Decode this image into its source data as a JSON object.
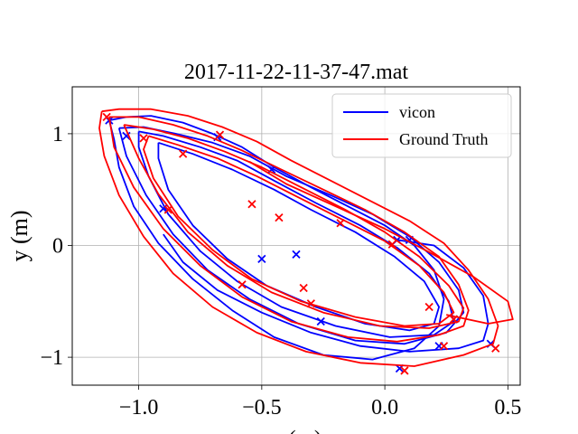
{
  "chart_data": {
    "type": "line",
    "title": "2017-11-22-11-37-47.mat",
    "xlabel": "x (m)",
    "ylabel": "y (m)",
    "xlim": [
      -1.27,
      0.55
    ],
    "ylim": [
      -1.25,
      1.42
    ],
    "xticks": [
      -1.0,
      -0.5,
      0.0,
      0.5
    ],
    "xtick_labels": [
      "−1.0",
      "−0.5",
      "0.0",
      "0.5"
    ],
    "yticks": [
      -1,
      0,
      1
    ],
    "ytick_labels": [
      "−1",
      "0",
      "1"
    ],
    "grid": true,
    "legend_position": "top-right",
    "series": [
      {
        "name": "vicon",
        "color": "#0000ff",
        "loops": [
          [
            [
              -1.12,
              1.12
            ],
            [
              -1.05,
              1.15
            ],
            [
              -0.95,
              1.16
            ],
            [
              -0.82,
              1.1
            ],
            [
              -0.7,
              1.0
            ],
            [
              -0.58,
              0.88
            ],
            [
              -0.45,
              0.7
            ],
            [
              -0.3,
              0.52
            ],
            [
              -0.15,
              0.35
            ],
            [
              0.0,
              0.18
            ],
            [
              0.12,
              0.0
            ],
            [
              0.2,
              -0.22
            ],
            [
              0.24,
              -0.48
            ],
            [
              0.22,
              -0.72
            ],
            [
              0.12,
              -0.92
            ],
            [
              -0.05,
              -1.02
            ],
            [
              -0.25,
              -0.98
            ],
            [
              -0.45,
              -0.82
            ],
            [
              -0.62,
              -0.58
            ],
            [
              -0.78,
              -0.3
            ],
            [
              -0.92,
              0.02
            ],
            [
              -1.02,
              0.35
            ],
            [
              -1.08,
              0.7
            ],
            [
              -1.1,
              0.95
            ],
            [
              -1.12,
              1.12
            ]
          ],
          [
            [
              -1.08,
              1.05
            ],
            [
              -0.98,
              1.06
            ],
            [
              -0.85,
              1.0
            ],
            [
              -0.7,
              0.92
            ],
            [
              -0.55,
              0.8
            ],
            [
              -0.4,
              0.62
            ],
            [
              -0.22,
              0.45
            ],
            [
              -0.05,
              0.28
            ],
            [
              0.1,
              0.08
            ],
            [
              0.22,
              -0.15
            ],
            [
              0.3,
              -0.4
            ],
            [
              0.32,
              -0.6
            ],
            [
              0.25,
              -0.78
            ],
            [
              0.08,
              -0.88
            ],
            [
              -0.12,
              -0.85
            ],
            [
              -0.35,
              -0.7
            ],
            [
              -0.55,
              -0.48
            ],
            [
              -0.72,
              -0.22
            ],
            [
              -0.86,
              0.1
            ],
            [
              -0.97,
              0.45
            ],
            [
              -1.05,
              0.8
            ],
            [
              -1.08,
              1.05
            ]
          ],
          [
            [
              -1.0,
              1.02
            ],
            [
              -0.9,
              0.98
            ],
            [
              -0.75,
              0.88
            ],
            [
              -0.6,
              0.76
            ],
            [
              -0.45,
              0.58
            ],
            [
              -0.28,
              0.38
            ],
            [
              -0.1,
              0.18
            ],
            [
              0.05,
              -0.02
            ],
            [
              0.18,
              -0.25
            ],
            [
              0.26,
              -0.5
            ],
            [
              0.28,
              -0.68
            ],
            [
              0.2,
              -0.8
            ],
            [
              0.02,
              -0.82
            ],
            [
              -0.2,
              -0.72
            ],
            [
              -0.42,
              -0.55
            ],
            [
              -0.6,
              -0.32
            ],
            [
              -0.75,
              -0.05
            ],
            [
              -0.88,
              0.28
            ],
            [
              -0.96,
              0.62
            ],
            [
              -1.0,
              0.88
            ],
            [
              -1.0,
              1.02
            ]
          ],
          [
            [
              -0.92,
              0.92
            ],
            [
              -0.78,
              0.82
            ],
            [
              -0.62,
              0.68
            ],
            [
              -0.45,
              0.5
            ],
            [
              -0.3,
              0.32
            ],
            [
              -0.12,
              0.12
            ],
            [
              0.04,
              -0.1
            ],
            [
              0.16,
              -0.32
            ],
            [
              0.22,
              -0.55
            ],
            [
              0.2,
              -0.7
            ],
            [
              0.1,
              -0.76
            ],
            [
              -0.08,
              -0.7
            ],
            [
              -0.28,
              -0.55
            ],
            [
              -0.48,
              -0.36
            ],
            [
              -0.64,
              -0.12
            ],
            [
              -0.78,
              0.18
            ],
            [
              -0.88,
              0.5
            ],
            [
              -0.92,
              0.78
            ],
            [
              -0.92,
              0.92
            ]
          ],
          [
            [
              0.05,
              0.05
            ],
            [
              0.2,
              0.0
            ],
            [
              0.32,
              -0.2
            ],
            [
              0.4,
              -0.45
            ],
            [
              0.42,
              -0.7
            ],
            [
              0.4,
              -0.85
            ],
            [
              0.3,
              -0.92
            ],
            [
              0.1,
              -0.95
            ],
            [
              -0.1,
              -0.9
            ],
            [
              -0.3,
              -0.78
            ],
            [
              -0.5,
              -0.6
            ],
            [
              -0.68,
              -0.4
            ],
            [
              -0.82,
              -0.15
            ],
            [
              -0.9,
              0.1
            ]
          ]
        ],
        "markers": [
          [
            -1.12,
            1.12
          ],
          [
            -0.68,
            0.97
          ],
          [
            -0.46,
            0.68
          ],
          [
            -0.36,
            -0.08
          ],
          [
            -0.5,
            -0.12
          ],
          [
            -0.26,
            -0.68
          ],
          [
            0.06,
            -1.1
          ],
          [
            0.22,
            -0.9
          ],
          [
            0.43,
            -0.88
          ],
          [
            0.28,
            -0.66
          ],
          [
            0.1,
            0.05
          ],
          [
            0.05,
            0.05
          ],
          [
            -0.9,
            0.33
          ],
          [
            -1.05,
            0.98
          ]
        ]
      },
      {
        "name": "Ground Truth",
        "color": "#ff0000",
        "loops": [
          [
            [
              -1.15,
              1.2
            ],
            [
              -1.08,
              1.22
            ],
            [
              -0.95,
              1.22
            ],
            [
              -0.8,
              1.16
            ],
            [
              -0.66,
              1.06
            ],
            [
              -0.52,
              0.93
            ],
            [
              -0.38,
              0.76
            ],
            [
              -0.22,
              0.58
            ],
            [
              -0.06,
              0.4
            ],
            [
              0.1,
              0.22
            ],
            [
              0.24,
              0.02
            ],
            [
              0.34,
              -0.22
            ],
            [
              0.42,
              -0.48
            ],
            [
              0.46,
              -0.72
            ],
            [
              0.44,
              -0.88
            ],
            [
              0.32,
              -0.98
            ],
            [
              0.12,
              -1.08
            ],
            [
              -0.1,
              -1.05
            ],
            [
              -0.32,
              -0.95
            ],
            [
              -0.52,
              -0.78
            ],
            [
              -0.7,
              -0.55
            ],
            [
              -0.86,
              -0.25
            ],
            [
              -0.98,
              0.08
            ],
            [
              -1.08,
              0.45
            ],
            [
              -1.14,
              0.8
            ],
            [
              -1.16,
              1.05
            ],
            [
              -1.15,
              1.2
            ]
          ],
          [
            [
              -1.12,
              1.15
            ],
            [
              -1.0,
              1.15
            ],
            [
              -0.86,
              1.08
            ],
            [
              -0.72,
              0.98
            ],
            [
              -0.58,
              0.85
            ],
            [
              -0.42,
              0.68
            ],
            [
              -0.25,
              0.5
            ],
            [
              -0.08,
              0.32
            ],
            [
              0.08,
              0.12
            ],
            [
              0.22,
              -0.1
            ],
            [
              0.3,
              -0.35
            ],
            [
              0.34,
              -0.58
            ],
            [
              0.32,
              -0.72
            ],
            [
              0.22,
              -0.8
            ],
            [
              0.05,
              -0.86
            ],
            [
              -0.15,
              -0.82
            ],
            [
              -0.38,
              -0.68
            ],
            [
              -0.58,
              -0.46
            ],
            [
              -0.75,
              -0.18
            ],
            [
              -0.9,
              0.15
            ],
            [
              -1.02,
              0.52
            ],
            [
              -1.1,
              0.88
            ],
            [
              -1.12,
              1.15
            ]
          ],
          [
            [
              -1.06,
              1.08
            ],
            [
              -0.94,
              1.04
            ],
            [
              -0.8,
              0.96
            ],
            [
              -0.65,
              0.84
            ],
            [
              -0.5,
              0.7
            ],
            [
              -0.34,
              0.52
            ],
            [
              -0.16,
              0.32
            ],
            [
              0.0,
              0.12
            ],
            [
              0.14,
              -0.1
            ],
            [
              0.26,
              -0.36
            ],
            [
              0.32,
              -0.56
            ],
            [
              0.3,
              -0.68
            ],
            [
              0.18,
              -0.74
            ],
            [
              -0.02,
              -0.72
            ],
            [
              -0.25,
              -0.6
            ],
            [
              -0.46,
              -0.42
            ],
            [
              -0.64,
              -0.18
            ],
            [
              -0.8,
              0.12
            ],
            [
              -0.92,
              0.46
            ],
            [
              -1.0,
              0.78
            ],
            [
              -1.06,
              1.08
            ]
          ],
          [
            [
              -0.96,
              0.98
            ],
            [
              -0.84,
              0.9
            ],
            [
              -0.68,
              0.78
            ],
            [
              -0.52,
              0.62
            ],
            [
              -0.36,
              0.44
            ],
            [
              -0.18,
              0.24
            ],
            [
              0.0,
              0.04
            ],
            [
              0.14,
              -0.18
            ],
            [
              0.24,
              -0.42
            ],
            [
              0.28,
              -0.6
            ],
            [
              0.22,
              -0.7
            ],
            [
              0.08,
              -0.72
            ],
            [
              -0.12,
              -0.64
            ],
            [
              -0.34,
              -0.5
            ],
            [
              -0.54,
              -0.3
            ],
            [
              -0.7,
              -0.04
            ],
            [
              -0.84,
              0.26
            ],
            [
              -0.94,
              0.6
            ],
            [
              -0.98,
              0.86
            ],
            [
              -0.96,
              0.98
            ]
          ],
          [
            [
              -0.55,
              0.75
            ],
            [
              -0.4,
              0.55
            ],
            [
              -0.2,
              0.35
            ],
            [
              0.0,
              0.15
            ],
            [
              0.18,
              -0.06
            ],
            [
              0.36,
              -0.28
            ],
            [
              0.5,
              -0.5
            ],
            [
              0.52,
              -0.66
            ],
            [
              0.42,
              -0.7
            ],
            [
              0.25,
              -0.62
            ]
          ]
        ],
        "markers": [
          [
            -1.13,
            1.15
          ],
          [
            -0.98,
            0.96
          ],
          [
            -0.82,
            0.82
          ],
          [
            -0.67,
            0.99
          ],
          [
            -0.54,
            0.37
          ],
          [
            -0.43,
            0.25
          ],
          [
            -0.18,
            0.2
          ],
          [
            0.03,
            0.01
          ],
          [
            -0.33,
            -0.38
          ],
          [
            -0.3,
            -0.52
          ],
          [
            -0.58,
            -0.35
          ],
          [
            0.18,
            -0.55
          ],
          [
            0.24,
            -0.9
          ],
          [
            0.08,
            -1.12
          ],
          [
            0.45,
            -0.92
          ],
          [
            0.28,
            -0.66
          ],
          [
            -0.88,
            0.32
          ]
        ]
      }
    ]
  }
}
